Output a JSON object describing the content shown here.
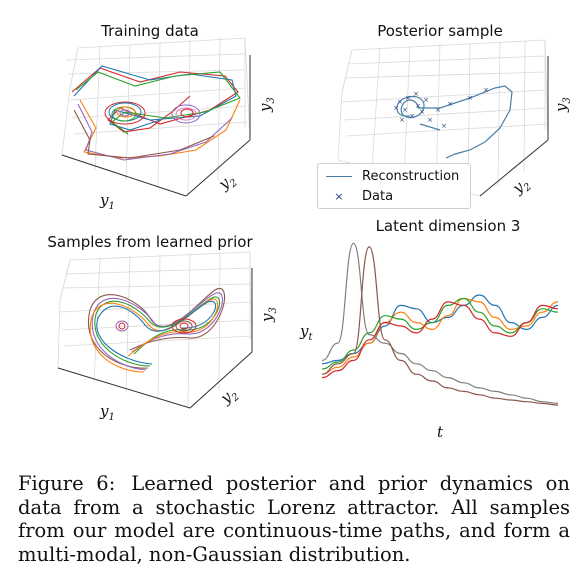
{
  "figure": {
    "panels": [
      {
        "title": "Training data",
        "axis_labels": [
          "y",
          "1",
          "y",
          "2",
          "y",
          "3"
        ]
      },
      {
        "title": "Posterior sample",
        "axis_labels": [
          "y",
          "2",
          "y",
          "3"
        ],
        "legend": {
          "line_label": "Reconstruction",
          "marker_label": "Data",
          "marker": "×"
        }
      },
      {
        "title": "Samples from learned prior",
        "axis_labels": [
          "y",
          "1",
          "y",
          "2",
          "y",
          "3"
        ]
      },
      {
        "title": "Latent dimension 3",
        "ylabel": "y",
        "ylabel_sub": "t",
        "xlabel": "t"
      }
    ],
    "caption": {
      "label": "Figure 6:",
      "text": "Learned posterior and prior dynamics on data from a stochastic Lorenz attractor. All samples from our model are continuous-time paths, and form a multi-modal, non-Gaussian distribution."
    },
    "colors": {
      "series": [
        "#1f77b4",
        "#ff7f0e",
        "#2ca02c",
        "#d62728",
        "#9467bd",
        "#8c564b",
        "#e377c2",
        "#7f7f7f"
      ],
      "posterior_line": "#4a7fa6",
      "posterior_marker": "#1f3f7a",
      "grid": "#d9d9d9"
    },
    "chart_data": {
      "type": "line",
      "xlabel": "t",
      "ylabel": "y_t",
      "series": [
        {
          "values": [
            0.28,
            0.3,
            0.34,
            0.4,
            0.5,
            0.62,
            0.6,
            0.52,
            0.55,
            0.62,
            0.68,
            0.62,
            0.52,
            0.48,
            0.55,
            0.62
          ]
        },
        {
          "values": [
            0.22,
            0.26,
            0.32,
            0.4,
            0.52,
            0.58,
            0.52,
            0.48,
            0.56,
            0.66,
            0.64,
            0.55,
            0.48,
            0.5,
            0.58,
            0.64
          ]
        },
        {
          "values": [
            0.25,
            0.29,
            0.36,
            0.46,
            0.56,
            0.54,
            0.48,
            0.52,
            0.62,
            0.66,
            0.58,
            0.5,
            0.46,
            0.52,
            0.6,
            0.58
          ]
        },
        {
          "values": [
            0.2,
            0.24,
            0.3,
            0.42,
            0.52,
            0.5,
            0.46,
            0.54,
            0.64,
            0.62,
            0.54,
            0.46,
            0.44,
            0.52,
            0.62,
            0.6
          ]
        },
        {
          "values": [
            0.3,
            0.4,
            0.98,
            0.45,
            0.4,
            0.34,
            0.28,
            0.24,
            0.2,
            0.17,
            0.14,
            0.12,
            0.1,
            0.08,
            0.06,
            0.05
          ]
        },
        {
          "values": [
            0.22,
            0.28,
            0.34,
            0.96,
            0.42,
            0.3,
            0.22,
            0.18,
            0.14,
            0.12,
            0.1,
            0.08,
            0.07,
            0.06,
            0.05,
            0.04
          ]
        }
      ]
    }
  }
}
